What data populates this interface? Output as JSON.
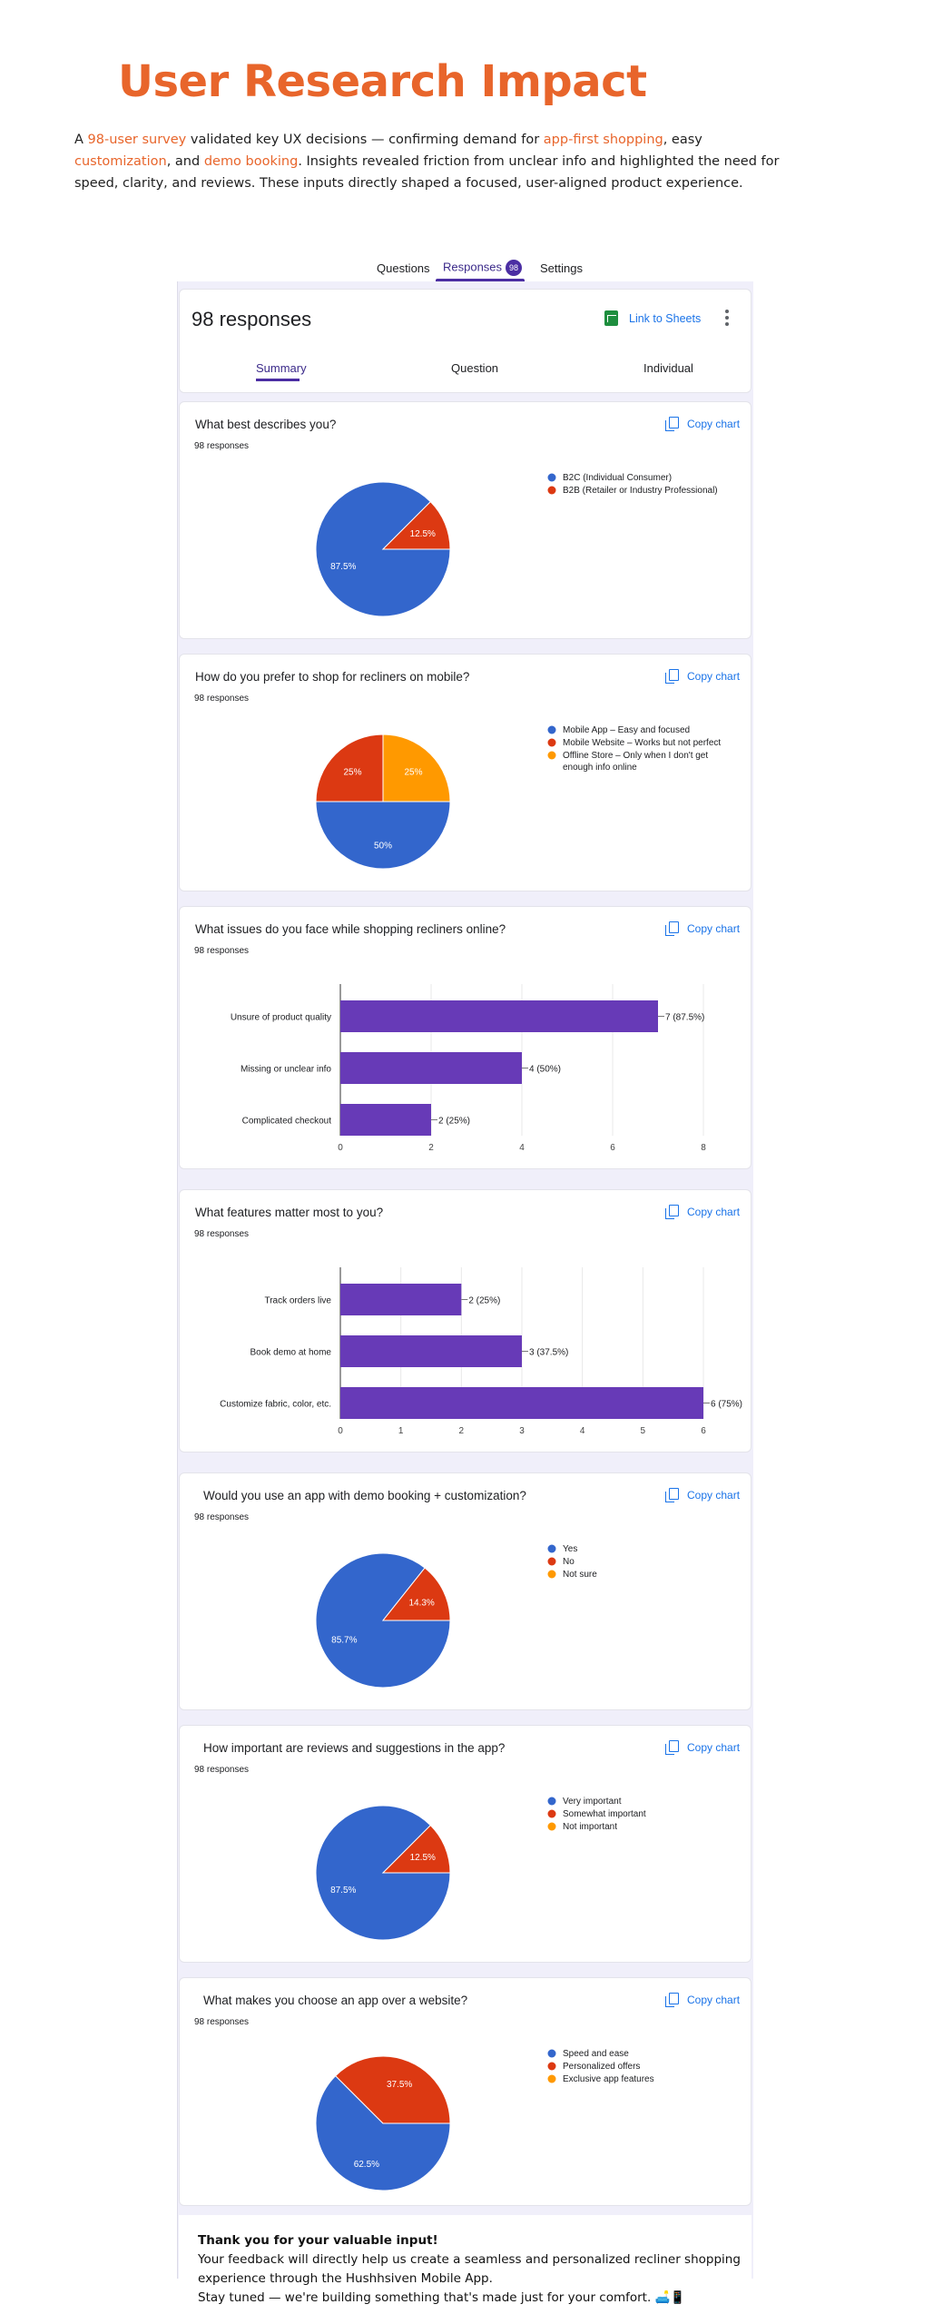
{
  "header": {
    "title": "User Research Impact",
    "intro": {
      "p1": "A ",
      "survey": "98-user survey",
      "p2": " validated key UX decisions — confirming demand for ",
      "app_first": "app-first shopping",
      "p3": ", easy ",
      "custom": "customization",
      "p4": ", and ",
      "demo": "demo booking",
      "p5": ". Insights revealed friction from unclear info and highlighted the need for speed, clarity, and reviews. These inputs directly shaped a focused, user-aligned product experience."
    }
  },
  "form_tabs": {
    "questions": "Questions",
    "responses": "Responses",
    "responses_badge": "98",
    "settings": "Settings"
  },
  "summary": {
    "title": "98 responses",
    "link_sheets": "Link to Sheets",
    "tabs": {
      "summary": "Summary",
      "question": "Question",
      "individual": "Individual"
    }
  },
  "copy_chart_label": "Copy chart",
  "response_count": "98 responses",
  "colors": {
    "blue": "#3366cc",
    "red": "#dc3912",
    "orange": "#ff9900",
    "purple": "#673ab7",
    "accent": "#e8652b"
  },
  "questions": [
    {
      "title": "What best describes you?",
      "chart_data": {
        "type": "pie",
        "title": "What best describes you?",
        "slices": [
          {
            "label": "B2C (Individual Consumer)",
            "value": 87.5,
            "display": "87.5%"
          },
          {
            "label": "B2B (Retailer or Industry Professional)",
            "value": 12.5,
            "display": "12.5%"
          }
        ],
        "legend": [
          "B2C (Individual Consumer)",
          "B2B (Retailer or Industry Professional)"
        ],
        "legend_position": "right"
      }
    },
    {
      "title": "How do you prefer to shop for recliners on mobile?",
      "chart_data": {
        "type": "pie",
        "title": "How do you prefer to shop for recliners on mobile?",
        "slices": [
          {
            "label": "Mobile App – Easy and focused",
            "value": 50,
            "display": "50%"
          },
          {
            "label": "Mobile Website – Works but not perfect",
            "value": 25,
            "display": "25%"
          },
          {
            "label": "Offline Store – Only when I don't get enough info online",
            "value": 25,
            "display": "25%"
          }
        ],
        "legend": [
          "Mobile App – Easy and focused",
          "Mobile Website – Works but not perfect",
          "Offline Store – Only when I don't get enough info online"
        ],
        "legend_position": "right"
      }
    },
    {
      "title": "What issues do you face while shopping recliners online?",
      "chart_data": {
        "type": "bar",
        "orientation": "horizontal",
        "title": "What issues do you face while shopping recliners online?",
        "categories": [
          "Unsure of product quality",
          "Missing or unclear info",
          "Complicated checkout"
        ],
        "values": [
          7,
          4,
          2
        ],
        "data_labels": [
          "7 (87.5%)",
          "4 (50%)",
          "2 (25%)"
        ],
        "xlim": [
          0,
          8
        ],
        "ticks": [
          "0",
          "2",
          "4",
          "6",
          "8"
        ],
        "grid": true
      }
    },
    {
      "title": "What features matter most to you?",
      "chart_data": {
        "type": "bar",
        "orientation": "horizontal",
        "title": "What features matter most to you?",
        "categories": [
          "Track orders live",
          "Book demo at home",
          "Customize fabric, color, etc."
        ],
        "values": [
          2,
          3,
          6
        ],
        "data_labels": [
          "2 (25%)",
          "3 (37.5%)",
          "6 (75%)"
        ],
        "xlim": [
          0,
          6
        ],
        "ticks": [
          "0",
          "1",
          "2",
          "3",
          "4",
          "5",
          "6"
        ],
        "grid": true
      }
    },
    {
      "title": "Would you use an app with demo booking + customization?",
      "chart_data": {
        "type": "pie",
        "title": "Would you use an app with demo booking + customization?",
        "slices": [
          {
            "label": "Yes",
            "value": 85.7,
            "display": "85.7%"
          },
          {
            "label": "No",
            "value": 14.3,
            "display": "14.3%"
          },
          {
            "label": "Not sure",
            "value": 0,
            "display": ""
          }
        ],
        "legend": [
          "Yes",
          "No",
          "Not sure"
        ],
        "legend_position": "right"
      }
    },
    {
      "title": "How important are reviews and suggestions in the app?",
      "chart_data": {
        "type": "pie",
        "title": "How important are reviews and suggestions in the app?",
        "slices": [
          {
            "label": "Very important",
            "value": 87.5,
            "display": "87.5%"
          },
          {
            "label": "Somewhat important",
            "value": 12.5,
            "display": "12.5%"
          },
          {
            "label": "Not important",
            "value": 0,
            "display": ""
          }
        ],
        "legend": [
          "Very important",
          "Somewhat important",
          "Not important"
        ],
        "legend_position": "right"
      }
    },
    {
      "title": "What makes you choose an app over a website?",
      "chart_data": {
        "type": "pie",
        "title": "What makes you choose an app over a website?",
        "slices": [
          {
            "label": "Speed and ease",
            "value": 62.5,
            "display": "62.5%"
          },
          {
            "label": "Personalized offers",
            "value": 37.5,
            "display": "37.5%"
          },
          {
            "label": "Exclusive app features",
            "value": 0,
            "display": ""
          }
        ],
        "legend": [
          "Speed and ease",
          "Personalized offers",
          "Exclusive app features"
        ],
        "legend_position": "right"
      }
    }
  ],
  "thanks": {
    "heading": "Thank you for your valuable input!",
    "line1": "Your feedback will directly help us create a seamless and personalized recliner shopping experience through the Hushhsiven Mobile App.",
    "line2": "Stay tuned — we're building something that's made just for your comfort. 🛋️📱"
  }
}
